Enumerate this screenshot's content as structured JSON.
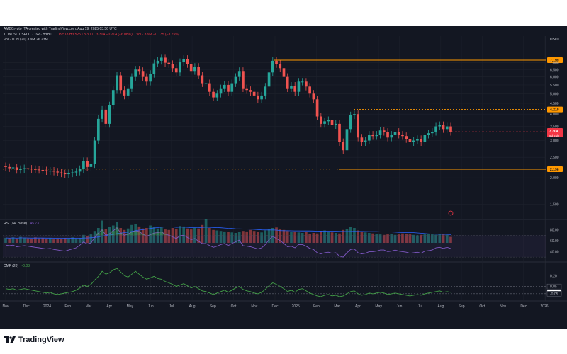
{
  "header": {
    "created": "AMBCrypto_TA created with TradingView.com, Aug 19, 2025 03:56 UTC",
    "symbol": "TONUSDT SPOT · 1W · BYBIT",
    "ohlc": "O3.518  H3.525  L3.300  C3.304  −0.214 (−6.08%)",
    "vol_text": "Vol · 3.9M  −0.135 (−3.75%)",
    "vol_indicator": "Vol · TON (20)  3.9M  26.23M",
    "currency": "USDT"
  },
  "chart_data": {
    "type": "candlestick",
    "price_axis": {
      "ticks": [
        "7.000",
        "6.500",
        "6.000",
        "5.500",
        "5.000",
        "4.500",
        "4.000",
        "3.500",
        "3.000",
        "2.500",
        "2.000",
        "1.500"
      ],
      "tick_values": [
        7,
        6.5,
        6,
        5.5,
        5,
        4.5,
        4,
        3.5,
        3,
        2.5,
        2,
        1.5
      ],
      "ylim": [
        1.3,
        8.4
      ],
      "scale": "log"
    },
    "x_axis": {
      "labels": [
        "Nov",
        "Dec",
        "2024",
        "Feb",
        "Mar",
        "Apr",
        "May",
        "Jun",
        "Jul",
        "Aug",
        "Sep",
        "Oct",
        "Nov",
        "Dec",
        "2025",
        "Feb",
        "Mar",
        "Apr",
        "May",
        "Jun",
        "Jul",
        "Aug",
        "Sep",
        "Oct",
        "Nov",
        "Dec",
        "2026"
      ]
    },
    "levels": [
      {
        "value": 7.199,
        "label": "7.199",
        "color": "#ff9800",
        "style": "solid"
      },
      {
        "value": 4.21,
        "label": "4.210",
        "color": "#ff9800",
        "style": "dotted"
      },
      {
        "value": 2.196,
        "label": "2.196",
        "color": "#ff9800",
        "style": "solid"
      }
    ],
    "last_price": {
      "value": 3.304,
      "label": "3.304",
      "countdown": "5d 21h",
      "color": "#f23645"
    },
    "closes": [
      2.25,
      2.22,
      2.24,
      2.18,
      2.2,
      2.22,
      2.21,
      2.2,
      2.19,
      2.18,
      2.17,
      2.15,
      2.16,
      2.14,
      2.12,
      2.1,
      2.08,
      2.1,
      2.12,
      2.14,
      2.2,
      2.4,
      2.25,
      2.32,
      3.0,
      3.8,
      4.2,
      3.6,
      4.4,
      5.2,
      6.1,
      5.2,
      4.9,
      5.3,
      6.0,
      6.5,
      6.4,
      6.0,
      5.7,
      6.2,
      6.95,
      7.15,
      7.4,
      7.0,
      6.9,
      6.6,
      6.3,
      7.05,
      7.3,
      6.9,
      6.4,
      6.7,
      6.1,
      5.6,
      5.6,
      5.1,
      4.8,
      5.0,
      5.3,
      5.5,
      5.1,
      5.6,
      6.0,
      6.4,
      5.3,
      5.2,
      5.1,
      4.9,
      4.7,
      4.9,
      5.4,
      6.3,
      7.15,
      6.9,
      6.6,
      6.0,
      5.3,
      5.45,
      5.1,
      5.7,
      5.7,
      5.4,
      5.0,
      4.7,
      3.9,
      3.6,
      3.7,
      3.75,
      3.55,
      3.6,
      2.95,
      2.7,
      3.4,
      3.95,
      4.0,
      3.1,
      2.95,
      3.0,
      3.2,
      3.15,
      3.2,
      3.35,
      3.3,
      3.1,
      3.2,
      3.3,
      3.2,
      3.15,
      3.05,
      2.95,
      3.0,
      3.05,
      2.95,
      3.2,
      3.25,
      3.3,
      3.5,
      3.55,
      3.4,
      3.5,
      3.3
    ],
    "volume_axis_max": 100,
    "volumes": [
      10,
      9,
      11,
      8,
      12,
      10,
      9,
      8,
      11,
      9,
      10,
      8,
      9,
      7,
      9,
      8,
      10,
      9,
      11,
      9,
      10,
      16,
      14,
      17,
      24,
      30,
      45,
      28,
      32,
      35,
      42,
      30,
      26,
      29,
      36,
      38,
      33,
      29,
      30,
      35,
      32,
      29,
      31,
      27,
      26,
      30,
      28,
      34,
      33,
      29,
      27,
      30,
      29,
      36,
      48,
      30,
      26,
      25,
      24,
      23,
      22,
      21,
      20,
      22,
      24,
      23,
      26,
      24,
      22,
      21,
      25,
      28,
      30,
      31,
      27,
      26,
      24,
      22,
      23,
      21,
      20,
      22,
      18,
      20,
      19,
      24,
      25,
      22,
      21,
      20,
      19,
      26,
      28,
      32,
      30,
      25,
      22,
      21,
      20,
      19,
      18,
      17,
      16,
      17,
      18,
      16,
      17,
      19,
      18,
      17,
      16,
      15,
      16,
      17,
      18,
      17,
      16,
      18,
      17,
      16,
      12
    ],
    "rsi": {
      "label": "RSI (14, close)",
      "value": "45.73",
      "axis_ticks": [
        "80.00",
        "60.00",
        "40.00"
      ],
      "tick_values": [
        80,
        60,
        40
      ],
      "ylim": [
        25,
        95
      ],
      "values": [
        52,
        51,
        52,
        49,
        50,
        51,
        50,
        49,
        48,
        47,
        46,
        45,
        46,
        44,
        43,
        42,
        41,
        43,
        45,
        47,
        52,
        58,
        54,
        56,
        66,
        74,
        80,
        70,
        73,
        78,
        84,
        74,
        70,
        72,
        76,
        78,
        77,
        72,
        68,
        71,
        74,
        75,
        76,
        72,
        70,
        67,
        64,
        69,
        70,
        66,
        62,
        64,
        59,
        55,
        55,
        51,
        48,
        50,
        53,
        55,
        51,
        55,
        58,
        61,
        51,
        50,
        49,
        47,
        45,
        47,
        53,
        62,
        68,
        64,
        60,
        55,
        49,
        50,
        47,
        53,
        53,
        50,
        46,
        44,
        38,
        36,
        38,
        39,
        37,
        38,
        32,
        30,
        38,
        44,
        45,
        38,
        36,
        37,
        40,
        40,
        41,
        43,
        43,
        40,
        41,
        43,
        41,
        40,
        39,
        37,
        38,
        39,
        37,
        41,
        42,
        43,
        47,
        48,
        46,
        48,
        45.73
      ]
    },
    "cmf": {
      "label": "CMF (20)",
      "value": "-0.03",
      "axis_ticks": [
        "0.20",
        "0.05",
        "-0.03",
        "-0.05"
      ],
      "tick_values": [
        0.2,
        0.05,
        -0.03,
        -0.05
      ],
      "ylim": [
        -0.12,
        0.36
      ],
      "values": [
        0.02,
        0.01,
        0.02,
        0.0,
        0.01,
        0.02,
        0.01,
        0.0,
        -0.01,
        -0.02,
        -0.03,
        -0.04,
        -0.03,
        -0.05,
        -0.06,
        -0.05,
        -0.04,
        -0.03,
        -0.02,
        0.0,
        0.03,
        0.07,
        0.05,
        0.08,
        0.14,
        0.19,
        0.26,
        0.22,
        0.24,
        0.28,
        0.3,
        0.25,
        0.2,
        0.18,
        0.22,
        0.26,
        0.22,
        0.18,
        0.15,
        0.17,
        0.19,
        0.16,
        0.15,
        0.12,
        0.1,
        0.08,
        0.05,
        0.07,
        0.09,
        0.06,
        0.03,
        0.05,
        0.02,
        -0.01,
        -0.02,
        -0.04,
        -0.06,
        -0.04,
        -0.02,
        0.0,
        -0.03,
        0.0,
        0.03,
        0.05,
        0.01,
        -0.01,
        -0.02,
        -0.04,
        -0.05,
        -0.03,
        0.01,
        0.06,
        0.1,
        0.08,
        0.05,
        0.02,
        -0.02,
        0.0,
        -0.03,
        0.01,
        0.02,
        -0.01,
        -0.04,
        -0.06,
        -0.08,
        -0.09,
        -0.07,
        -0.06,
        -0.08,
        -0.07,
        -0.09,
        -0.08,
        -0.05,
        -0.02,
        -0.01,
        -0.05,
        -0.07,
        -0.06,
        -0.04,
        -0.05,
        -0.04,
        -0.03,
        -0.04,
        -0.06,
        -0.05,
        -0.04,
        -0.05,
        -0.06,
        -0.07,
        -0.08,
        -0.07,
        -0.06,
        -0.07,
        -0.05,
        -0.04,
        -0.03,
        -0.02,
        -0.01,
        -0.03,
        -0.02,
        -0.03
      ]
    }
  },
  "footer": {
    "brand": "TradingView"
  }
}
